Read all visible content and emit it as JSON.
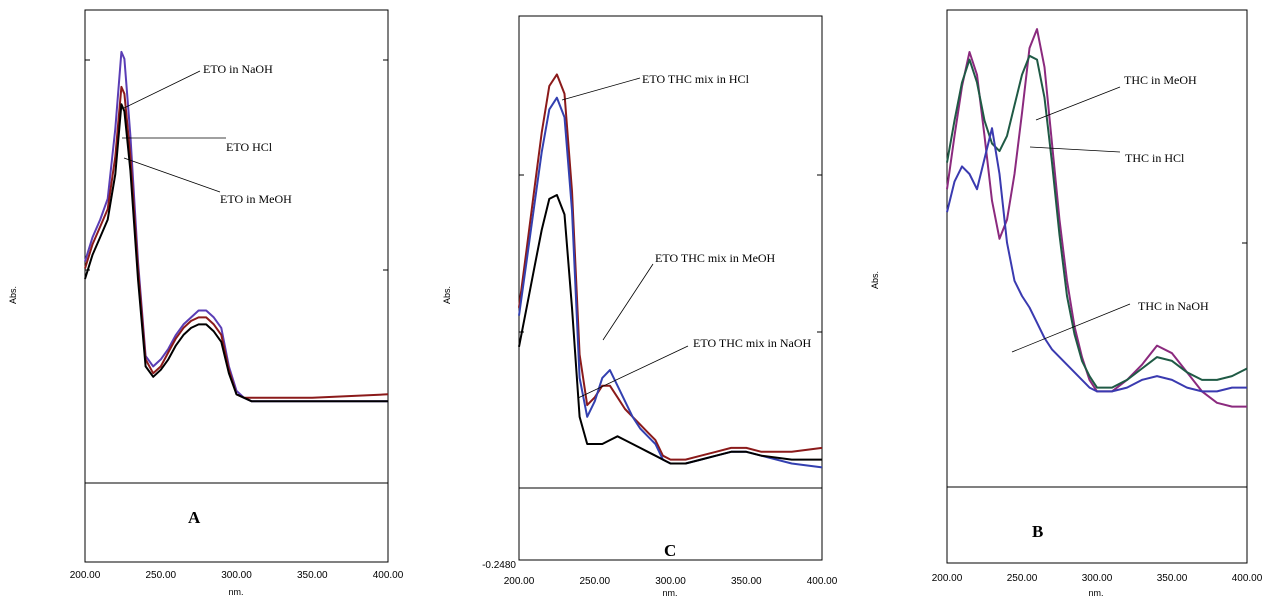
{
  "chart_data": [
    {
      "type": "line",
      "panel_label": "A",
      "xlabel": "nm.",
      "ylabel": "Abs.",
      "xlim": [
        200,
        400
      ],
      "ylim": [
        -0.46,
        1.12
      ],
      "x_ticks": [
        "200.00",
        "250.00",
        "300.00",
        "350.00",
        "400.00"
      ],
      "y_tick_labels": [],
      "grid": false,
      "series": [
        {
          "name": "ETO in NaOH",
          "color": "#5a3db5",
          "x": [
            200,
            205,
            210,
            215,
            220,
            224,
            226,
            230,
            235,
            240,
            245,
            250,
            255,
            260,
            265,
            270,
            275,
            280,
            285,
            290,
            295,
            300,
            305,
            310,
            350,
            400
          ],
          "y": [
            0.4,
            0.47,
            0.52,
            0.58,
            0.78,
            1.0,
            0.98,
            0.76,
            0.4,
            0.13,
            0.1,
            0.12,
            0.15,
            0.19,
            0.22,
            0.24,
            0.26,
            0.26,
            0.24,
            0.21,
            0.1,
            0.03,
            0.01,
            0.0,
            0.0,
            0.0
          ]
        },
        {
          "name": "ETO HCl",
          "color": "#8b1a1a",
          "x": [
            200,
            205,
            210,
            215,
            220,
            224,
            226,
            230,
            235,
            240,
            245,
            250,
            255,
            260,
            265,
            270,
            275,
            280,
            285,
            290,
            295,
            300,
            305,
            310,
            350,
            400
          ],
          "y": [
            0.38,
            0.45,
            0.5,
            0.55,
            0.7,
            0.9,
            0.88,
            0.7,
            0.38,
            0.12,
            0.08,
            0.1,
            0.14,
            0.18,
            0.21,
            0.23,
            0.24,
            0.24,
            0.22,
            0.19,
            0.09,
            0.02,
            0.01,
            0.01,
            0.01,
            0.02
          ]
        },
        {
          "name": "ETO in MeOH",
          "color": "#000000",
          "x": [
            200,
            205,
            210,
            215,
            220,
            224,
            226,
            230,
            235,
            240,
            245,
            250,
            255,
            260,
            265,
            270,
            275,
            280,
            285,
            290,
            295,
            300,
            305,
            310,
            350,
            400
          ],
          "y": [
            0.35,
            0.42,
            0.47,
            0.52,
            0.65,
            0.85,
            0.83,
            0.66,
            0.35,
            0.1,
            0.07,
            0.09,
            0.12,
            0.16,
            0.19,
            0.21,
            0.22,
            0.22,
            0.2,
            0.17,
            0.08,
            0.02,
            0.01,
            0.0,
            0.0,
            0.0
          ]
        }
      ],
      "annotations": [
        "ETO in NaOH",
        "ETO HCl",
        "ETO in MeOH"
      ]
    },
    {
      "type": "line",
      "panel_label": "C",
      "xlabel": "nm.",
      "ylabel": "Abs.",
      "xlim": [
        200,
        400
      ],
      "ylim": [
        -0.248,
        1.15
      ],
      "x_ticks": [
        "200.00",
        "250.00",
        "300.00",
        "350.00",
        "400.00"
      ],
      "y_tick_labels": [
        "-0.2480"
      ],
      "grid": false,
      "series": [
        {
          "name": "ETO THC mix in HCl",
          "color": "#8b1a1a",
          "x": [
            200,
            205,
            210,
            215,
            220,
            225,
            230,
            235,
            240,
            245,
            250,
            255,
            260,
            265,
            270,
            275,
            280,
            285,
            290,
            295,
            300,
            310,
            320,
            330,
            340,
            350,
            360,
            380,
            400
          ],
          "y": [
            0.4,
            0.55,
            0.7,
            0.85,
            0.97,
            1.0,
            0.95,
            0.7,
            0.28,
            0.15,
            0.17,
            0.2,
            0.2,
            0.17,
            0.14,
            0.12,
            0.1,
            0.08,
            0.06,
            0.02,
            0.01,
            0.01,
            0.02,
            0.03,
            0.04,
            0.04,
            0.03,
            0.03,
            0.04
          ]
        },
        {
          "name": "ETO THC mix in MeOH",
          "color": "#3340b0",
          "x": [
            200,
            205,
            210,
            215,
            220,
            225,
            230,
            235,
            240,
            245,
            250,
            255,
            260,
            265,
            270,
            275,
            280,
            285,
            290,
            295,
            300,
            310,
            320,
            330,
            340,
            350,
            360,
            380,
            400
          ],
          "y": [
            0.38,
            0.52,
            0.66,
            0.8,
            0.91,
            0.94,
            0.89,
            0.65,
            0.22,
            0.12,
            0.16,
            0.22,
            0.24,
            0.2,
            0.16,
            0.12,
            0.09,
            0.07,
            0.05,
            0.01,
            0.0,
            0.0,
            0.01,
            0.02,
            0.03,
            0.03,
            0.02,
            0.0,
            -0.01
          ]
        },
        {
          "name": "ETO THC mix in NaOH",
          "color": "#000000",
          "x": [
            200,
            205,
            210,
            215,
            220,
            225,
            230,
            235,
            240,
            245,
            250,
            255,
            260,
            265,
            270,
            275,
            280,
            285,
            290,
            295,
            300,
            310,
            320,
            330,
            340,
            350,
            360,
            380,
            400
          ],
          "y": [
            0.3,
            0.4,
            0.5,
            0.6,
            0.68,
            0.69,
            0.64,
            0.4,
            0.12,
            0.05,
            0.05,
            0.05,
            0.06,
            0.07,
            0.06,
            0.05,
            0.04,
            0.03,
            0.02,
            0.01,
            0.0,
            0.0,
            0.01,
            0.02,
            0.03,
            0.03,
            0.02,
            0.01,
            0.01
          ]
        }
      ],
      "annotations": [
        "ETO THC mix in HCl",
        "ETO THC mix in MeOH",
        "ETO THC mix in NaOH"
      ]
    },
    {
      "type": "line",
      "panel_label": "B",
      "xlabel": "nm.",
      "ylabel": "Abs.",
      "xlim": [
        200,
        400
      ],
      "ylim": [
        -0.4,
        1.05
      ],
      "x_ticks": [
        "200.00",
        "250.00",
        "300.00",
        "350.00",
        "400.00"
      ],
      "y_tick_labels": [],
      "grid": false,
      "series": [
        {
          "name": "THC in MeOH",
          "color": "#8b2a7e",
          "x": [
            200,
            205,
            210,
            215,
            220,
            225,
            230,
            235,
            240,
            245,
            250,
            255,
            260,
            265,
            270,
            275,
            280,
            285,
            290,
            295,
            300,
            310,
            320,
            330,
            340,
            350,
            360,
            370,
            380,
            390,
            400
          ],
          "y": [
            0.58,
            0.72,
            0.85,
            0.94,
            0.88,
            0.72,
            0.55,
            0.45,
            0.5,
            0.62,
            0.78,
            0.95,
            1.0,
            0.9,
            0.7,
            0.5,
            0.34,
            0.22,
            0.14,
            0.08,
            0.05,
            0.05,
            0.08,
            0.12,
            0.17,
            0.15,
            0.1,
            0.05,
            0.02,
            0.01,
            0.01
          ]
        },
        {
          "name": "THC in HCl",
          "color": "#1f5a45",
          "x": [
            200,
            205,
            210,
            215,
            220,
            225,
            230,
            235,
            240,
            245,
            250,
            255,
            260,
            265,
            270,
            275,
            280,
            285,
            290,
            295,
            300,
            310,
            320,
            330,
            340,
            350,
            360,
            370,
            380,
            390,
            400
          ],
          "y": [
            0.65,
            0.76,
            0.86,
            0.92,
            0.86,
            0.76,
            0.7,
            0.68,
            0.72,
            0.8,
            0.88,
            0.93,
            0.92,
            0.82,
            0.65,
            0.46,
            0.3,
            0.2,
            0.13,
            0.09,
            0.06,
            0.06,
            0.08,
            0.11,
            0.14,
            0.13,
            0.1,
            0.08,
            0.08,
            0.09,
            0.11
          ]
        },
        {
          "name": "THC in NaOH",
          "color": "#3a3ab0",
          "x": [
            200,
            205,
            210,
            215,
            220,
            225,
            230,
            235,
            240,
            245,
            250,
            255,
            260,
            265,
            270,
            275,
            280,
            285,
            290,
            295,
            300,
            310,
            320,
            330,
            340,
            350,
            360,
            370,
            380,
            390,
            400
          ],
          "y": [
            0.52,
            0.6,
            0.64,
            0.62,
            0.58,
            0.66,
            0.74,
            0.62,
            0.44,
            0.34,
            0.3,
            0.27,
            0.23,
            0.19,
            0.16,
            0.14,
            0.12,
            0.1,
            0.08,
            0.06,
            0.05,
            0.05,
            0.06,
            0.08,
            0.09,
            0.08,
            0.06,
            0.05,
            0.05,
            0.06,
            0.06
          ]
        }
      ],
      "annotations": [
        "THC in MeOH",
        "THC in HCl",
        "THC in NaOH"
      ]
    }
  ]
}
